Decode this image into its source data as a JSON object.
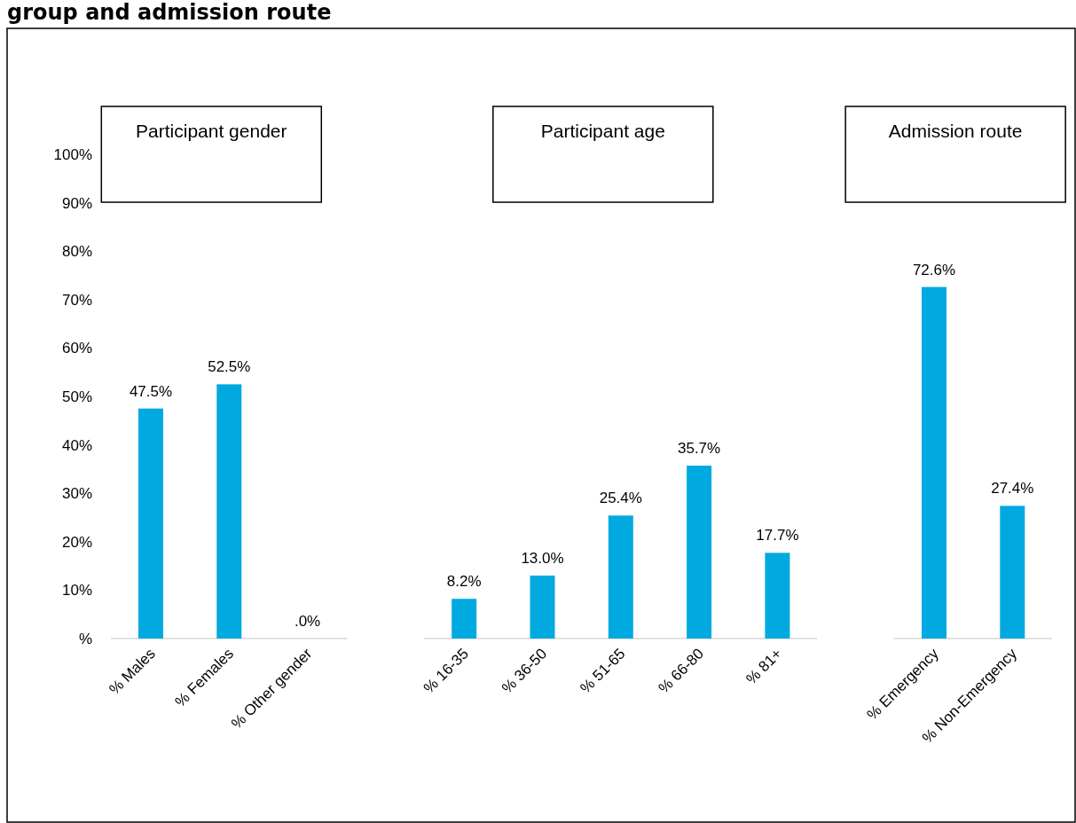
{
  "chart_data": {
    "type": "bar",
    "title": "group and admission route",
    "categories": [
      "% Males",
      "% Females",
      "% Other gender",
      null,
      "% 16-35",
      "% 36-50",
      "% 51-65",
      "% 66-80",
      "% 81+",
      null,
      "% Emergency",
      "% Non-Emergency"
    ],
    "values": [
      47.5,
      52.5,
      0,
      null,
      8.2,
      13.0,
      25.4,
      35.7,
      17.7,
      null,
      72.6,
      27.4
    ],
    "value_labels": [
      "47.5%",
      "52.5%",
      ".0%",
      null,
      "8.2%",
      "13.0%",
      "25.4%",
      "35.7%",
      "17.7%",
      null,
      "72.6%",
      "27.4%"
    ],
    "color": "#00a9e0",
    "ylim": [
      0,
      100
    ],
    "yticks": [
      {
        "value": 0,
        "label": "%"
      },
      {
        "value": 10,
        "label": "10%"
      },
      {
        "value": 20,
        "label": "20%"
      },
      {
        "value": 30,
        "label": "30%"
      },
      {
        "value": 40,
        "label": "40%"
      },
      {
        "value": 50,
        "label": "50%"
      },
      {
        "value": 60,
        "label": "60%"
      },
      {
        "value": 70,
        "label": "70%"
      },
      {
        "value": 80,
        "label": "80%"
      },
      {
        "value": 90,
        "label": "90%"
      },
      {
        "value": 100,
        "label": "100%"
      }
    ],
    "annotations": [
      "Participant gender",
      "Participant age",
      "Admission route"
    ]
  }
}
